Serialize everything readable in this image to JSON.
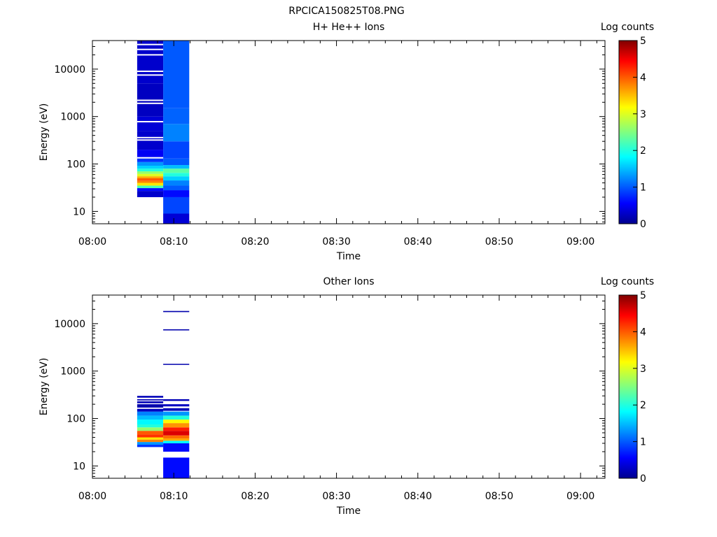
{
  "figure": {
    "title": "RPCICA150825T08.PNG"
  },
  "colors": {
    "axis": "#000000",
    "background": "#ffffff",
    "gap": "#ffffff"
  },
  "chart_data": [
    {
      "type": "heatmap",
      "title": "H+ He++ Ions",
      "xlabel": "Time",
      "ylabel": "Energy (eV)",
      "x_scale": "time",
      "x_range": [
        "08:00",
        "09:03"
      ],
      "x_ticks": [
        "08:00",
        "08:10",
        "08:20",
        "08:30",
        "08:40",
        "08:50",
        "09:00"
      ],
      "y_scale": "log",
      "y_range": [
        5.5,
        40000
      ],
      "y_ticks": [
        "10",
        "100",
        "1000",
        "10000"
      ],
      "colorbar": {
        "label": "Log counts",
        "range": [
          0,
          5
        ],
        "ticks": [
          "0",
          "1",
          "2",
          "3",
          "4",
          "5"
        ]
      },
      "columns": [
        {
          "t_start": "08:05.5",
          "t_end": "08:08.7",
          "e_min": 20,
          "e_max": 40000,
          "bands": [
            [
              20,
              27,
              0.3
            ],
            [
              27,
              31,
              0.6
            ],
            [
              31,
              35,
              2.2
            ],
            [
              35,
              40,
              3.3
            ],
            [
              40,
              44,
              3.8
            ],
            [
              44,
              50,
              4.0
            ],
            [
              50,
              55,
              3.6
            ],
            [
              55,
              62,
              3.0
            ],
            [
              62,
              70,
              2.6
            ],
            [
              70,
              80,
              2.0
            ],
            [
              80,
              92,
              1.6
            ],
            [
              92,
              110,
              1.3
            ],
            [
              110,
              140,
              0.8
            ],
            [
              140,
              200,
              0.5
            ],
            [
              200,
              500,
              0.3
            ],
            [
              500,
              1000,
              0.35
            ],
            [
              1000,
              5000,
              0.25
            ],
            [
              5000,
              40000,
              0.3
            ]
          ],
          "gaps": [
            135,
            320,
            360,
            780,
            1900,
            2200,
            7500,
            9000,
            20000,
            26000,
            33000
          ]
        },
        {
          "t_start": "08:08.7",
          "t_end": "08:11.9",
          "e_min": 5.5,
          "e_max": 40000,
          "bands": [
            [
              5.5,
              9,
              0.35
            ],
            [
              9,
              20,
              0.9
            ],
            [
              20,
              28,
              0.6
            ],
            [
              28,
              35,
              1.0
            ],
            [
              35,
              45,
              1.2
            ],
            [
              45,
              55,
              1.6
            ],
            [
              55,
              65,
              2.0
            ],
            [
              65,
              80,
              2.3
            ],
            [
              80,
              95,
              1.5
            ],
            [
              95,
              130,
              1.0
            ],
            [
              130,
              300,
              0.9
            ],
            [
              300,
              700,
              1.2
            ],
            [
              700,
              1500,
              1.05
            ],
            [
              1500,
              40000,
              1.0
            ]
          ],
          "gaps": []
        }
      ]
    },
    {
      "type": "heatmap",
      "title": "Other Ions",
      "xlabel": "Time",
      "ylabel": "Energy (eV)",
      "x_scale": "time",
      "x_range": [
        "08:00",
        "09:03"
      ],
      "x_ticks": [
        "08:00",
        "08:10",
        "08:20",
        "08:30",
        "08:40",
        "08:50",
        "09:00"
      ],
      "y_scale": "log",
      "y_range": [
        5.5,
        40000
      ],
      "y_ticks": [
        "10",
        "100",
        "1000",
        "10000"
      ],
      "colorbar": {
        "label": "Log counts",
        "range": [
          0,
          5
        ],
        "ticks": [
          "0",
          "1",
          "2",
          "3",
          "4",
          "5"
        ]
      },
      "columns": [
        {
          "t_start": "08:05.5",
          "t_end": "08:08.7",
          "bands": [
            [
              25,
              28,
              0.8
            ],
            [
              28,
              32,
              1.3
            ],
            [
              32,
              36,
              3.8
            ],
            [
              36,
              40,
              3.3
            ],
            [
              40,
              46,
              4.2
            ],
            [
              46,
              55,
              4.0
            ],
            [
              55,
              65,
              2.6
            ],
            [
              65,
              75,
              2.0
            ],
            [
              75,
              95,
              1.8
            ],
            [
              95,
              115,
              1.5
            ],
            [
              115,
              140,
              1.2
            ],
            [
              140,
              160,
              0.25
            ],
            [
              170,
              200,
              0.15
            ],
            [
              210,
              230,
              0.2
            ],
            [
              240,
              255,
              0.2
            ],
            [
              275,
              300,
              0.2
            ]
          ],
          "gaps": []
        },
        {
          "t_start": "08:08.7",
          "t_end": "08:11.9",
          "bands": [
            [
              5.5,
              15,
              0.6
            ],
            [
              20,
              30,
              0.6
            ],
            [
              30,
              34,
              1.8
            ],
            [
              34,
              38,
              3.6
            ],
            [
              38,
              44,
              3.9
            ],
            [
              44,
              55,
              4.6
            ],
            [
              55,
              65,
              4.3
            ],
            [
              65,
              80,
              3.7
            ],
            [
              80,
              95,
              3.2
            ],
            [
              95,
              115,
              2.0
            ],
            [
              115,
              140,
              1.3
            ],
            [
              145,
              165,
              0.2
            ],
            [
              180,
              200,
              0.25
            ],
            [
              235,
              255,
              0.2
            ],
            [
              1350,
              1420,
              0.15
            ],
            [
              7200,
              7600,
              0.15
            ],
            [
              17500,
              18500,
              0.15
            ]
          ],
          "gaps": []
        }
      ]
    }
  ]
}
